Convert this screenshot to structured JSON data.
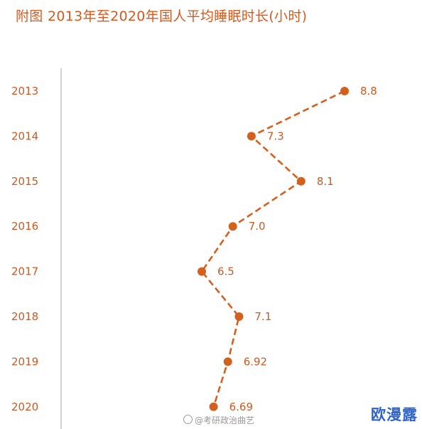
{
  "title": "附图 2013年至2020年国人平均睡眠时长(小时)",
  "watermark": "@考研政治曲艺",
  "site_mark": "欧漫露",
  "chart_data": {
    "type": "line",
    "title": "附图 2013年至2020年国人平均睡眠时长(小时)",
    "orientation": "vertical-categories",
    "categories": [
      "2013",
      "2014",
      "2015",
      "2016",
      "2017",
      "2018",
      "2019",
      "2020"
    ],
    "values": [
      8.8,
      7.3,
      8.1,
      7.0,
      6.5,
      7.1,
      6.92,
      6.69
    ],
    "data_labels": [
      "8.8",
      "7.3",
      "8.1",
      "7.0",
      "6.5",
      "7.1",
      "6.92",
      "6.69"
    ],
    "line_style": "dashed",
    "marker": "circle",
    "grid": false,
    "xlabel": "",
    "ylabel": "",
    "colors": {
      "line": "#d4601e",
      "text": "#c85a22",
      "axis": "#b0b0b0",
      "title": "#d45a1e"
    }
  }
}
